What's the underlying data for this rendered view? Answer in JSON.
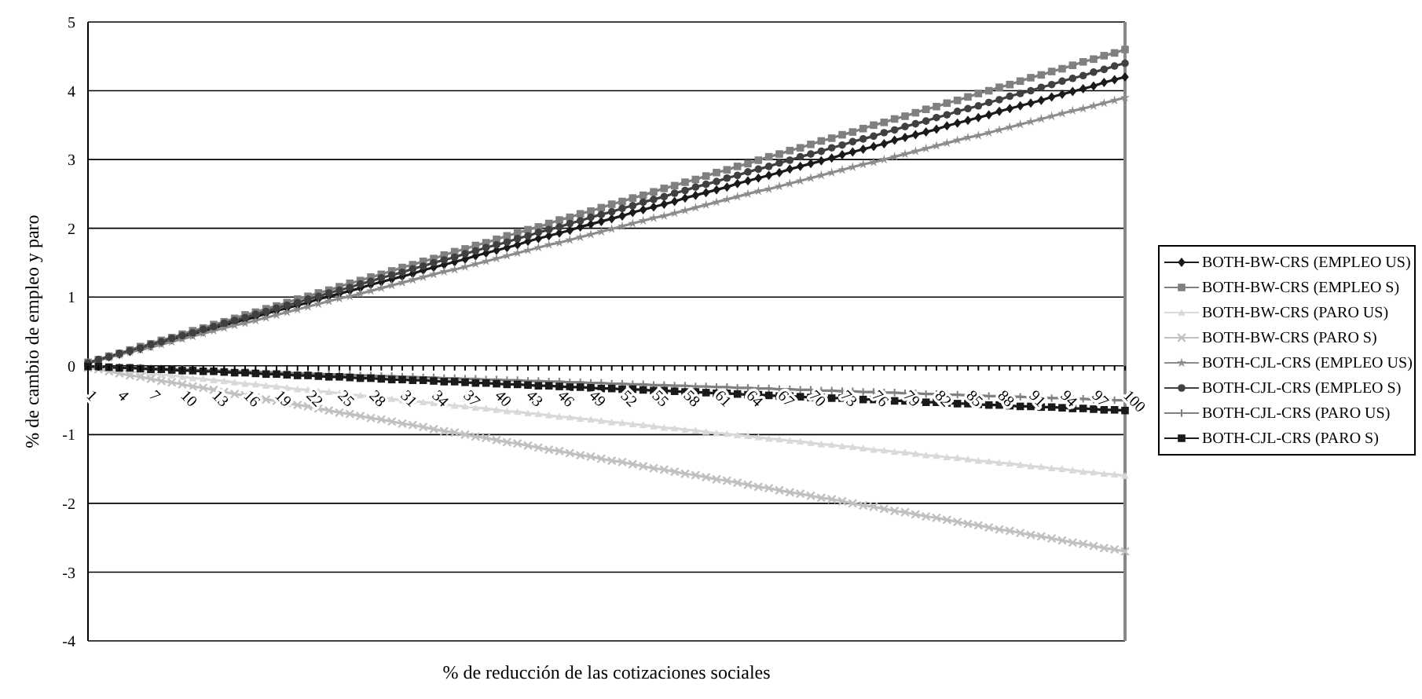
{
  "chart_data": {
    "type": "line",
    "xlabel": "% de reducción de las cotizaciones sociales",
    "ylabel": "% de cambio de empleo y paro",
    "categories": [
      "1",
      null,
      null,
      "4",
      null,
      null,
      "7",
      null,
      null,
      "10",
      null,
      null,
      "13",
      null,
      null,
      "16",
      null,
      null,
      "19",
      null,
      null,
      "22",
      null,
      null,
      "25",
      null,
      null,
      "28",
      null,
      null,
      "31",
      null,
      null,
      "34",
      null,
      null,
      "37",
      null,
      null,
      "40",
      null,
      null,
      "43",
      null,
      null,
      "46",
      null,
      null,
      "49",
      null,
      null,
      "52",
      null,
      null,
      "55",
      null,
      null,
      "58",
      null,
      null,
      "61",
      null,
      null,
      "64",
      null,
      null,
      "67",
      null,
      null,
      "70",
      null,
      null,
      "73",
      null,
      null,
      "76",
      null,
      null,
      "79",
      null,
      null,
      "82",
      null,
      null,
      "85",
      null,
      null,
      "88",
      null,
      null,
      "91",
      null,
      null,
      "94",
      null,
      null,
      "97",
      null,
      null,
      "100"
    ],
    "ylim": [
      -4,
      5
    ],
    "yticks": [
      -4,
      -3,
      -2,
      -1,
      0,
      1,
      2,
      3,
      4,
      5
    ],
    "grid": "y",
    "legend": "right",
    "series": [
      {
        "name": "BOTH-BW-CRS (EMPLEO US)",
        "color": "#1a1a1a",
        "marker": "diamond",
        "values": [
          0.04,
          0.08,
          0.13,
          0.17,
          0.21,
          0.25,
          0.29,
          0.34,
          0.38,
          0.42,
          0.46,
          0.5,
          0.55,
          0.59,
          0.63,
          0.67,
          0.71,
          0.76,
          0.8,
          0.84,
          0.88,
          0.92,
          0.97,
          1.01,
          1.05,
          1.09,
          1.13,
          1.18,
          1.22,
          1.26,
          1.3,
          1.34,
          1.39,
          1.43,
          1.47,
          1.51,
          1.55,
          1.6,
          1.64,
          1.68,
          1.72,
          1.76,
          1.81,
          1.85,
          1.89,
          1.93,
          1.97,
          2.02,
          2.06,
          2.1,
          2.14,
          2.18,
          2.23,
          2.27,
          2.31,
          2.35,
          2.39,
          2.44,
          2.48,
          2.52,
          2.56,
          2.6,
          2.65,
          2.69,
          2.73,
          2.77,
          2.81,
          2.86,
          2.9,
          2.94,
          2.98,
          3.02,
          3.07,
          3.11,
          3.15,
          3.19,
          3.23,
          3.28,
          3.32,
          3.36,
          3.4,
          3.44,
          3.49,
          3.53,
          3.57,
          3.61,
          3.65,
          3.7,
          3.74,
          3.78,
          3.82,
          3.86,
          3.91,
          3.95,
          3.99,
          4.03,
          4.07,
          4.12,
          4.16,
          4.2
        ]
      },
      {
        "name": "BOTH-BW-CRS (EMPLEO S)",
        "color": "#808080",
        "marker": "square",
        "values": [
          0.05,
          0.09,
          0.14,
          0.18,
          0.23,
          0.28,
          0.32,
          0.37,
          0.41,
          0.46,
          0.51,
          0.55,
          0.6,
          0.64,
          0.69,
          0.74,
          0.78,
          0.83,
          0.87,
          0.92,
          0.97,
          1.01,
          1.06,
          1.1,
          1.15,
          1.2,
          1.24,
          1.29,
          1.33,
          1.38,
          1.43,
          1.47,
          1.52,
          1.56,
          1.61,
          1.66,
          1.7,
          1.75,
          1.79,
          1.84,
          1.89,
          1.93,
          1.98,
          2.02,
          2.07,
          2.12,
          2.16,
          2.21,
          2.25,
          2.3,
          2.35,
          2.39,
          2.44,
          2.48,
          2.53,
          2.58,
          2.62,
          2.67,
          2.71,
          2.76,
          2.81,
          2.85,
          2.9,
          2.94,
          2.99,
          3.04,
          3.08,
          3.13,
          3.17,
          3.22,
          3.27,
          3.31,
          3.36,
          3.4,
          3.45,
          3.5,
          3.54,
          3.59,
          3.63,
          3.68,
          3.73,
          3.77,
          3.82,
          3.86,
          3.91,
          3.96,
          4.0,
          4.05,
          4.09,
          4.14,
          4.19,
          4.23,
          4.28,
          4.32,
          4.37,
          4.42,
          4.46,
          4.51,
          4.55,
          4.6
        ]
      },
      {
        "name": "BOTH-BW-CRS (PARO US)",
        "color": "#d9d9d9",
        "marker": "triangle",
        "values": [
          -0.02,
          -0.03,
          -0.05,
          -0.06,
          -0.08,
          -0.1,
          -0.11,
          -0.13,
          -0.14,
          -0.16,
          -0.18,
          -0.19,
          -0.21,
          -0.22,
          -0.24,
          -0.26,
          -0.27,
          -0.29,
          -0.3,
          -0.32,
          -0.34,
          -0.35,
          -0.37,
          -0.38,
          -0.4,
          -0.42,
          -0.43,
          -0.45,
          -0.46,
          -0.48,
          -0.5,
          -0.51,
          -0.53,
          -0.54,
          -0.56,
          -0.58,
          -0.59,
          -0.61,
          -0.62,
          -0.64,
          -0.66,
          -0.67,
          -0.69,
          -0.7,
          -0.72,
          -0.74,
          -0.75,
          -0.77,
          -0.78,
          -0.8,
          -0.82,
          -0.83,
          -0.85,
          -0.86,
          -0.88,
          -0.9,
          -0.91,
          -0.93,
          -0.94,
          -0.96,
          -0.98,
          -0.99,
          -1.01,
          -1.02,
          -1.04,
          -1.06,
          -1.07,
          -1.09,
          -1.1,
          -1.12,
          -1.14,
          -1.15,
          -1.17,
          -1.18,
          -1.2,
          -1.22,
          -1.23,
          -1.25,
          -1.26,
          -1.28,
          -1.3,
          -1.31,
          -1.33,
          -1.34,
          -1.36,
          -1.38,
          -1.39,
          -1.41,
          -1.42,
          -1.44,
          -1.46,
          -1.47,
          -1.49,
          -1.5,
          -1.52,
          -1.54,
          -1.55,
          -1.57,
          -1.58,
          -1.6
        ]
      },
      {
        "name": "BOTH-BW-CRS (PARO S)",
        "color": "#c0c0c0",
        "marker": "cross",
        "values": [
          -0.03,
          -0.05,
          -0.08,
          -0.11,
          -0.14,
          -0.16,
          -0.19,
          -0.22,
          -0.24,
          -0.27,
          -0.3,
          -0.32,
          -0.35,
          -0.38,
          -0.41,
          -0.43,
          -0.46,
          -0.49,
          -0.51,
          -0.54,
          -0.57,
          -0.59,
          -0.62,
          -0.65,
          -0.68,
          -0.7,
          -0.73,
          -0.76,
          -0.78,
          -0.81,
          -0.84,
          -0.86,
          -0.89,
          -0.92,
          -0.95,
          -0.97,
          -1.0,
          -1.03,
          -1.05,
          -1.08,
          -1.11,
          -1.13,
          -1.16,
          -1.19,
          -1.22,
          -1.24,
          -1.27,
          -1.3,
          -1.32,
          -1.35,
          -1.38,
          -1.4,
          -1.43,
          -1.46,
          -1.49,
          -1.51,
          -1.54,
          -1.57,
          -1.59,
          -1.62,
          -1.65,
          -1.67,
          -1.7,
          -1.73,
          -1.76,
          -1.78,
          -1.81,
          -1.84,
          -1.86,
          -1.89,
          -1.92,
          -1.94,
          -1.97,
          -2.0,
          -2.03,
          -2.05,
          -2.08,
          -2.11,
          -2.13,
          -2.16,
          -2.19,
          -2.21,
          -2.24,
          -2.27,
          -2.3,
          -2.32,
          -2.35,
          -2.38,
          -2.4,
          -2.43,
          -2.46,
          -2.48,
          -2.51,
          -2.54,
          -2.57,
          -2.59,
          -2.62,
          -2.65,
          -2.67,
          -2.7
        ]
      },
      {
        "name": "BOTH-CJL-CRS (EMPLEO US)",
        "color": "#8c8c8c",
        "marker": "star",
        "values": [
          0.04,
          0.08,
          0.12,
          0.16,
          0.2,
          0.23,
          0.27,
          0.31,
          0.35,
          0.39,
          0.43,
          0.47,
          0.51,
          0.55,
          0.59,
          0.62,
          0.66,
          0.7,
          0.74,
          0.78,
          0.82,
          0.86,
          0.9,
          0.94,
          0.98,
          1.01,
          1.05,
          1.09,
          1.13,
          1.17,
          1.21,
          1.25,
          1.29,
          1.33,
          1.37,
          1.4,
          1.44,
          1.48,
          1.52,
          1.56,
          1.6,
          1.64,
          1.68,
          1.72,
          1.76,
          1.79,
          1.83,
          1.87,
          1.91,
          1.95,
          1.99,
          2.03,
          2.07,
          2.11,
          2.15,
          2.18,
          2.22,
          2.26,
          2.3,
          2.34,
          2.38,
          2.42,
          2.46,
          2.5,
          2.54,
          2.57,
          2.61,
          2.65,
          2.69,
          2.73,
          2.77,
          2.81,
          2.85,
          2.89,
          2.93,
          2.96,
          3.0,
          3.04,
          3.08,
          3.12,
          3.16,
          3.2,
          3.24,
          3.28,
          3.32,
          3.35,
          3.39,
          3.43,
          3.47,
          3.51,
          3.55,
          3.59,
          3.63,
          3.67,
          3.71,
          3.74,
          3.78,
          3.82,
          3.86,
          3.9
        ]
      },
      {
        "name": "BOTH-CJL-CRS (EMPLEO S)",
        "color": "#404040",
        "marker": "circle",
        "values": [
          0.04,
          0.09,
          0.13,
          0.18,
          0.22,
          0.26,
          0.31,
          0.35,
          0.4,
          0.44,
          0.48,
          0.53,
          0.57,
          0.62,
          0.66,
          0.7,
          0.75,
          0.79,
          0.84,
          0.88,
          0.92,
          0.97,
          1.01,
          1.06,
          1.1,
          1.14,
          1.19,
          1.23,
          1.28,
          1.32,
          1.36,
          1.41,
          1.45,
          1.5,
          1.54,
          1.58,
          1.63,
          1.67,
          1.72,
          1.76,
          1.8,
          1.85,
          1.89,
          1.94,
          1.98,
          2.02,
          2.07,
          2.11,
          2.16,
          2.2,
          2.24,
          2.29,
          2.33,
          2.38,
          2.42,
          2.46,
          2.51,
          2.55,
          2.6,
          2.64,
          2.68,
          2.73,
          2.77,
          2.82,
          2.86,
          2.9,
          2.95,
          2.99,
          3.04,
          3.08,
          3.12,
          3.17,
          3.21,
          3.26,
          3.3,
          3.34,
          3.39,
          3.43,
          3.48,
          3.52,
          3.56,
          3.61,
          3.65,
          3.7,
          3.74,
          3.78,
          3.83,
          3.87,
          3.92,
          3.96,
          4.0,
          4.05,
          4.09,
          4.14,
          4.18,
          4.22,
          4.27,
          4.31,
          4.36,
          4.4
        ]
      },
      {
        "name": "BOTH-CJL-CRS (PARO US)",
        "color": "#808080",
        "marker": "plus",
        "values": [
          -0.01,
          -0.01,
          -0.02,
          -0.02,
          -0.03,
          -0.03,
          -0.04,
          -0.04,
          -0.05,
          -0.05,
          -0.06,
          -0.06,
          -0.07,
          -0.07,
          -0.08,
          -0.08,
          -0.09,
          -0.09,
          -0.1,
          -0.1,
          -0.11,
          -0.11,
          -0.12,
          -0.12,
          -0.13,
          -0.13,
          -0.14,
          -0.14,
          -0.15,
          -0.15,
          -0.16,
          -0.16,
          -0.17,
          -0.17,
          -0.18,
          -0.18,
          -0.19,
          -0.19,
          -0.2,
          -0.2,
          -0.21,
          -0.21,
          -0.22,
          -0.22,
          -0.23,
          -0.23,
          -0.24,
          -0.24,
          -0.25,
          -0.25,
          -0.26,
          -0.26,
          -0.27,
          -0.27,
          -0.28,
          -0.28,
          -0.29,
          -0.29,
          -0.3,
          -0.3,
          -0.31,
          -0.31,
          -0.32,
          -0.32,
          -0.33,
          -0.33,
          -0.34,
          -0.34,
          -0.35,
          -0.35,
          -0.36,
          -0.36,
          -0.37,
          -0.37,
          -0.38,
          -0.38,
          -0.39,
          -0.39,
          -0.4,
          -0.4,
          -0.41,
          -0.41,
          -0.42,
          -0.42,
          -0.43,
          -0.43,
          -0.44,
          -0.44,
          -0.45,
          -0.45,
          -0.46,
          -0.46,
          -0.47,
          -0.47,
          -0.48,
          -0.48,
          -0.49,
          -0.49,
          -0.5,
          -0.5
        ]
      },
      {
        "name": "BOTH-CJL-CRS (PARO S)",
        "color": "#1a1a1a",
        "marker": "square",
        "values": [
          -0.01,
          -0.01,
          -0.02,
          -0.03,
          -0.03,
          -0.04,
          -0.05,
          -0.05,
          -0.06,
          -0.07,
          -0.07,
          -0.08,
          -0.08,
          -0.09,
          -0.1,
          -0.1,
          -0.11,
          -0.12,
          -0.12,
          -0.13,
          -0.14,
          -0.14,
          -0.15,
          -0.16,
          -0.16,
          -0.17,
          -0.18,
          -0.18,
          -0.19,
          -0.2,
          -0.2,
          -0.21,
          -0.21,
          -0.22,
          -0.23,
          -0.23,
          -0.24,
          -0.25,
          -0.25,
          -0.26,
          -0.27,
          -0.27,
          -0.28,
          -0.29,
          -0.29,
          -0.3,
          -0.31,
          -0.31,
          -0.32,
          -0.33,
          -0.33,
          -0.34,
          -0.34,
          -0.35,
          -0.36,
          -0.36,
          -0.37,
          -0.38,
          -0.38,
          -0.39,
          -0.4,
          -0.4,
          -0.41,
          -0.42,
          -0.42,
          -0.43,
          -0.44,
          -0.44,
          -0.45,
          -0.46,
          -0.46,
          -0.47,
          -0.47,
          -0.48,
          -0.49,
          -0.49,
          -0.5,
          -0.51,
          -0.51,
          -0.52,
          -0.53,
          -0.53,
          -0.54,
          -0.55,
          -0.55,
          -0.56,
          -0.57,
          -0.57,
          -0.58,
          -0.59,
          -0.59,
          -0.6,
          -0.6,
          -0.61,
          -0.62,
          -0.62,
          -0.63,
          -0.64,
          -0.64,
          -0.65
        ]
      }
    ]
  }
}
